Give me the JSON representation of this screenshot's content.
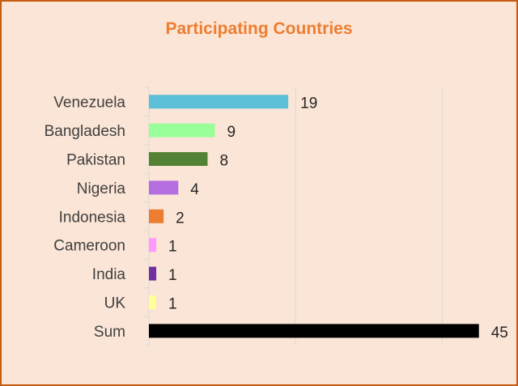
{
  "chart_data": {
    "type": "bar",
    "orientation": "horizontal",
    "title": "Participating Countries",
    "categories": [
      "Venezuela",
      "Bangladesh",
      "Pakistan",
      "Nigeria",
      "Indonesia",
      "Cameroon",
      "India",
      "UK",
      "Sum"
    ],
    "values": [
      19,
      9,
      8,
      4,
      2,
      1,
      1,
      1,
      45
    ],
    "colors": [
      "#5bc0d8",
      "#99ff99",
      "#548235",
      "#b46ee0",
      "#ed7d31",
      "#ff99ff",
      "#7030a0",
      "#ffff99",
      "#000000"
    ],
    "xlim": [
      0,
      45
    ],
    "x_gridlines_at": [
      20,
      40
    ],
    "data_labels": true,
    "legend": "none"
  }
}
